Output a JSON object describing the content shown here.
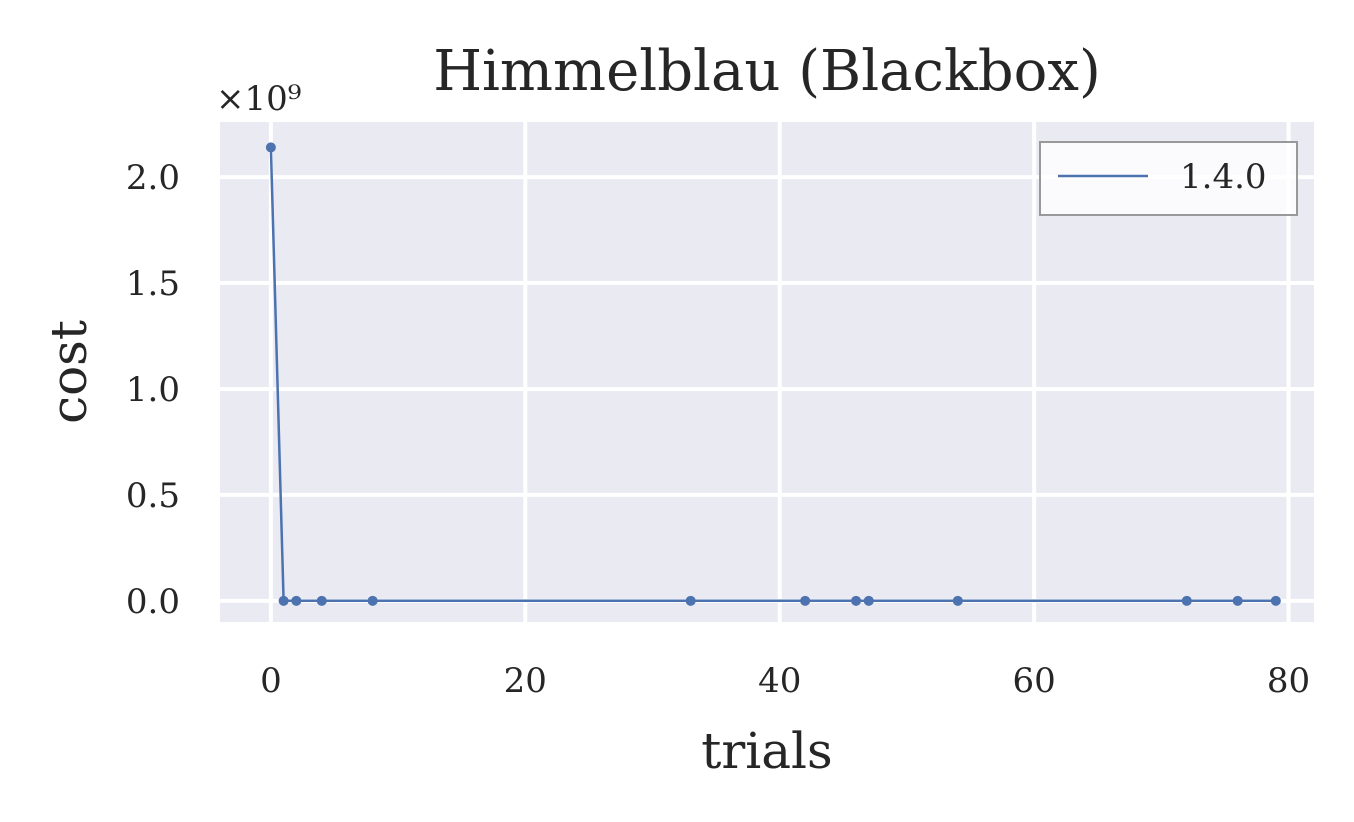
{
  "chart_data": {
    "type": "line",
    "title": "Himmelblau (Blackbox)",
    "xlabel": "trials",
    "ylabel": "cost",
    "y_offset_label": "×10⁹",
    "y_scale_factor": 1000000000,
    "xlim": [
      -4,
      82
    ],
    "ylim": [
      -0.1,
      2.26
    ],
    "x_ticks": [
      0,
      20,
      40,
      60,
      80
    ],
    "y_ticks": [
      0.0,
      0.5,
      1.0,
      1.5,
      2.0
    ],
    "x_tick_labels": [
      "0",
      "20",
      "40",
      "60",
      "80"
    ],
    "y_tick_labels": [
      "0.0",
      "0.5",
      "1.0",
      "1.5",
      "2.0"
    ],
    "grid": true,
    "legend_position": "top-right",
    "series": [
      {
        "name": "1.4.0",
        "color": "#4c72b0",
        "x": [
          0,
          1,
          2,
          4,
          8,
          33,
          42,
          46,
          47,
          54,
          72,
          76,
          79
        ],
        "y": [
          2.14,
          0.0,
          0.0,
          0.0,
          0.0,
          0.0,
          0.0,
          0.0,
          0.0,
          0.0,
          0.0,
          0.0,
          0.0
        ]
      }
    ]
  }
}
